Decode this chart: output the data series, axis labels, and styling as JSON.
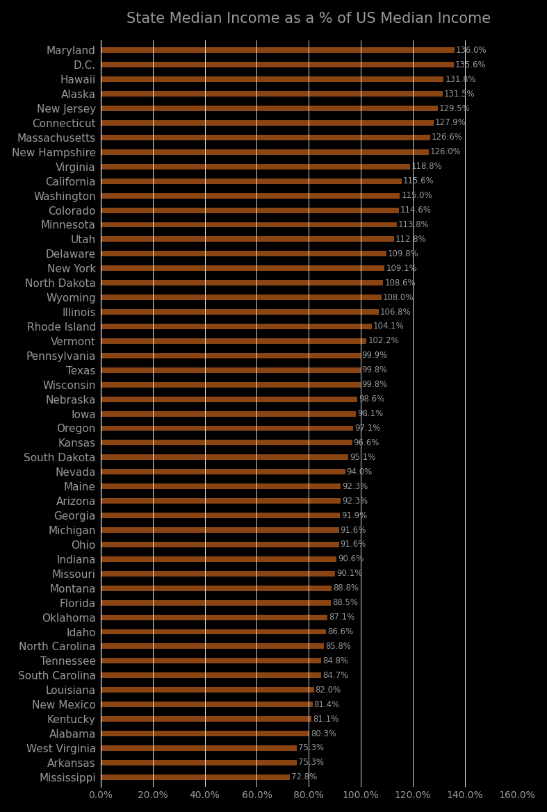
{
  "title": "State Median Income as a % of US Median Income",
  "bar_color": "#8B4513",
  "background_color": "#000000",
  "text_color": "#999999",
  "grid_color": "#ffffff",
  "states": [
    "Maryland",
    "D.C.",
    "Hawaii",
    "Alaska",
    "New Jersey",
    "Connecticut",
    "Massachusetts",
    "New Hampshire",
    "Virginia",
    "California",
    "Washington",
    "Colorado",
    "Minnesota",
    "Utah",
    "Delaware",
    "New York",
    "North Dakota",
    "Wyoming",
    "Illinois",
    "Rhode Island",
    "Vermont",
    "Pennsylvania",
    "Texas",
    "Wisconsin",
    "Nebraska",
    "Iowa",
    "Oregon",
    "Kansas",
    "South Dakota",
    "Nevada",
    "Maine",
    "Arizona",
    "Georgia",
    "Michigan",
    "Ohio",
    "Indiana",
    "Missouri",
    "Montana",
    "Florida",
    "Oklahoma",
    "Idaho",
    "North Carolina",
    "Tennessee",
    "South Carolina",
    "Louisiana",
    "New Mexico",
    "Kentucky",
    "Alabama",
    "West Virginia",
    "Arkansas",
    "Mississippi"
  ],
  "values": [
    136.0,
    135.6,
    131.8,
    131.5,
    129.5,
    127.9,
    126.6,
    126.0,
    118.8,
    115.6,
    115.0,
    114.6,
    113.8,
    112.8,
    109.8,
    109.1,
    108.6,
    108.0,
    106.8,
    104.1,
    102.2,
    99.9,
    99.8,
    99.8,
    98.6,
    98.1,
    97.1,
    96.6,
    95.1,
    94.0,
    92.3,
    92.3,
    91.9,
    91.6,
    91.6,
    90.6,
    90.1,
    88.8,
    88.5,
    87.1,
    86.6,
    85.8,
    84.8,
    84.7,
    82.0,
    81.4,
    81.1,
    80.3,
    75.3,
    75.3,
    72.8
  ],
  "xlim": [
    0,
    160
  ],
  "xticks": [
    0,
    20,
    40,
    60,
    80,
    100,
    120,
    140,
    160
  ],
  "title_fontsize": 15,
  "label_fontsize": 11,
  "value_fontsize": 8.5,
  "bar_height": 0.38
}
